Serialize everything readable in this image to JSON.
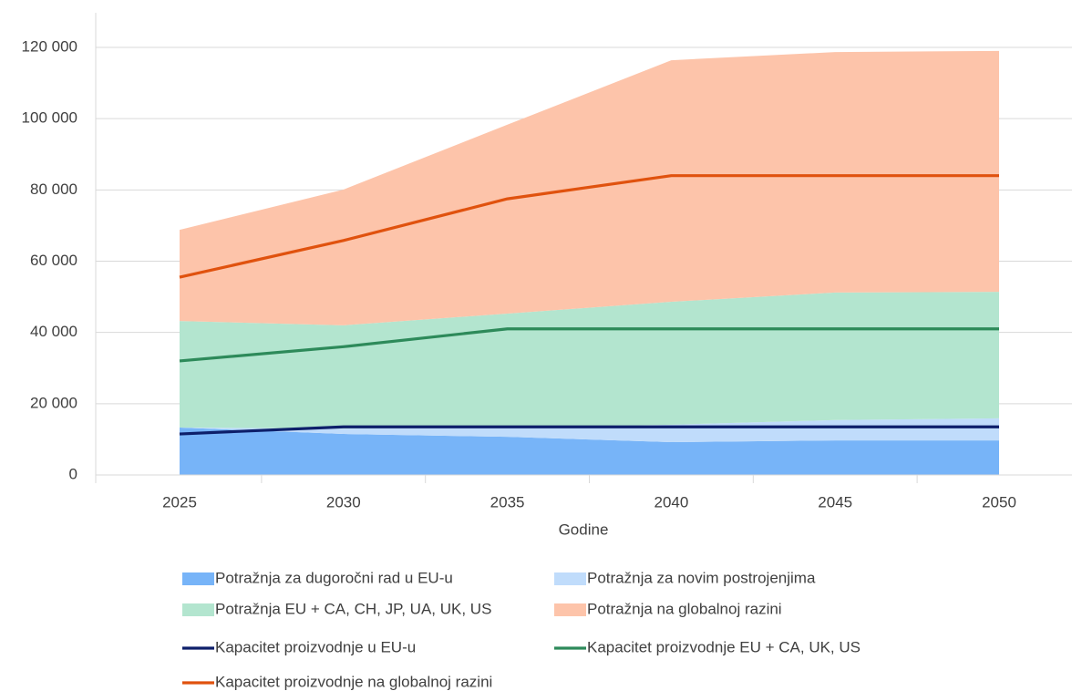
{
  "chart_data": {
    "type": "area",
    "x_label": "Godine",
    "categories": [
      "2025",
      "2030",
      "2035",
      "2040",
      "2045",
      "2050"
    ],
    "series": [
      {
        "name": "Potražnja za dugoročni rad u EU-u",
        "type": "area",
        "color": "#77b4f8",
        "values": [
          13300,
          11500,
          10700,
          9200,
          9700,
          9700
        ]
      },
      {
        "name": "Potražnja za novim postrojenjima",
        "type": "area",
        "color": "#c0dcfb",
        "values": [
          0,
          1500,
          2600,
          4900,
          5700,
          6200
        ]
      },
      {
        "name": "Potražnja EU + CA, CH, JP, UA, UK, US",
        "type": "area",
        "color": "#b3e5cf",
        "values": [
          29900,
          29000,
          32000,
          34500,
          35800,
          35500
        ]
      },
      {
        "name": "Potražnja na globalnoj razini",
        "type": "area",
        "color": "#fdc4aa",
        "values": [
          25600,
          38100,
          53000,
          67800,
          67500,
          67600
        ]
      },
      {
        "name": "Kapacitet proizvodnje u EU-u",
        "type": "line",
        "color": "#0d1f6a",
        "values": [
          11500,
          13500,
          13500,
          13500,
          13500,
          13500
        ]
      },
      {
        "name": "Kapacitet proizvodnje EU + CA, UK, US",
        "type": "line",
        "color": "#2d8a5a",
        "values": [
          32000,
          36000,
          41000,
          41000,
          41000,
          41000
        ]
      },
      {
        "name": "Kapacitet proizvodnje na globalnoj razini",
        "type": "line",
        "color": "#e0520e",
        "values": [
          55500,
          65800,
          77500,
          84000,
          84000,
          84000
        ]
      }
    ],
    "ylim": [
      0,
      120000
    ],
    "yticks": [
      0,
      {
        "value": 20000,
        "label": "20 000"
      },
      {
        "value": 40000,
        "label": "40 000"
      },
      {
        "value": 60000,
        "label": "60 000"
      },
      {
        "value": 80000,
        "label": "80 000"
      },
      {
        "value": 100000,
        "label": "100 000"
      },
      {
        "value": 120000,
        "label": "120 000"
      }
    ],
    "grid": true
  }
}
